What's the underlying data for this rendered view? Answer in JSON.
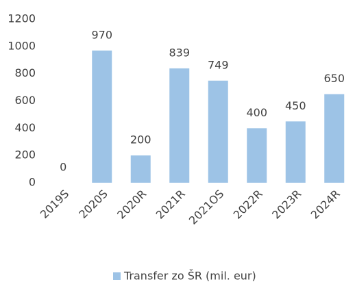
{
  "chart_data": {
    "type": "bar",
    "categories": [
      "2019S",
      "2020S",
      "2020R",
      "2021R",
      "2021OS",
      "2022R",
      "2023R",
      "2024R"
    ],
    "series": [
      {
        "name": "Transfer zo ŠR (mil. eur)",
        "color": "#9dc3e6",
        "values": [
          0,
          970,
          200,
          839,
          749,
          400,
          450,
          650
        ]
      }
    ],
    "ylim": [
      0,
      1200
    ],
    "yticks": [
      0,
      200,
      400,
      600,
      800,
      1000,
      1200
    ],
    "grid": false,
    "legend": "bottom"
  }
}
